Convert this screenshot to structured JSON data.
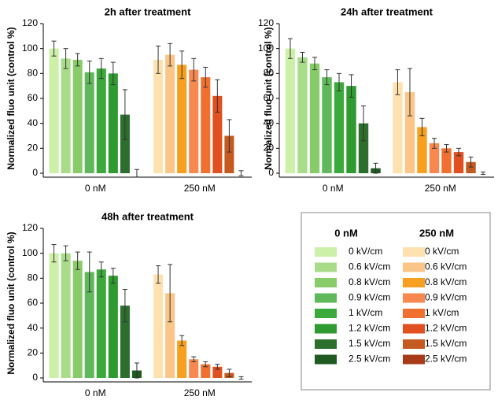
{
  "chart_data": [
    {
      "type": "bar",
      "title": "2h after treatment",
      "y_label": "Normalized fluo unit (control %)",
      "categories": [
        "0 nM",
        "250 nM"
      ],
      "values": [
        [
          100,
          92,
          91,
          81,
          84,
          80,
          47,
          0
        ],
        [
          91,
          95,
          87,
          83,
          77,
          62,
          30,
          0
        ]
      ],
      "errors": [
        [
          6,
          8,
          5,
          9,
          8,
          9,
          20,
          3
        ],
        [
          11,
          9,
          11,
          9,
          8,
          13,
          13,
          2
        ]
      ],
      "ylim": [
        0,
        120
      ],
      "yticks": [
        0,
        20,
        40,
        60,
        80,
        100,
        120
      ]
    },
    {
      "type": "bar",
      "title": "24h after treatment",
      "y_label": "Normalized fluo unit (control %)",
      "categories": [
        "0 nM",
        "250 nM"
      ],
      "values": [
        [
          100,
          93,
          88,
          77,
          73,
          70,
          40,
          4
        ],
        [
          73,
          65,
          37,
          24,
          20,
          17,
          9,
          0
        ]
      ],
      "errors": [
        [
          8,
          4,
          5,
          6,
          7,
          9,
          14,
          4
        ],
        [
          10,
          19,
          7,
          4,
          3,
          3,
          4,
          1
        ]
      ],
      "ylim": [
        0,
        120
      ],
      "yticks": [
        0,
        20,
        40,
        60,
        80,
        100,
        120
      ]
    },
    {
      "type": "bar",
      "title": "48h after treatment",
      "y_label": "Normalized fluo unit (control %)",
      "categories": [
        "0 nM",
        "250 nM"
      ],
      "values": [
        [
          100,
          100,
          94,
          85,
          87,
          82,
          58,
          6
        ],
        [
          83,
          68,
          30,
          15,
          11,
          9,
          4,
          0
        ]
      ],
      "errors": [
        [
          7,
          6,
          7,
          16,
          6,
          6,
          13,
          6
        ],
        [
          7,
          23,
          4,
          2,
          2,
          2,
          3,
          1
        ]
      ],
      "ylim": [
        0,
        120
      ],
      "yticks": [
        0,
        20,
        40,
        60,
        80,
        100,
        120
      ]
    }
  ],
  "legend": {
    "groups": [
      {
        "title": "0 nM",
        "items": [
          {
            "label": "0 kV/cm",
            "color": "#ccf0a8"
          },
          {
            "label": "0.6 kV/cm",
            "color": "#a8dc88"
          },
          {
            "label": "0.8 kV/cm",
            "color": "#88cc6a"
          },
          {
            "label": "0.9 kV/cm",
            "color": "#5fb85a"
          },
          {
            "label": "1 kV/cm",
            "color": "#3ca93c"
          },
          {
            "label": "1.2 kV/cm",
            "color": "#2f9a2f"
          },
          {
            "label": "1.5 kV/cm",
            "color": "#2c6e2c"
          },
          {
            "label": "2.5 kV/cm",
            "color": "#1f5a22"
          }
        ]
      },
      {
        "title": "250 nM",
        "items": [
          {
            "label": "0 kV/cm",
            "color": "#fde2b0"
          },
          {
            "label": "0.6 kV/cm",
            "color": "#fcc588"
          },
          {
            "label": "0.8 kV/cm",
            "color": "#f7a020"
          },
          {
            "label": "0.9 kV/cm",
            "color": "#f78850"
          },
          {
            "label": "1 kV/cm",
            "color": "#f07030"
          },
          {
            "label": "1.2 kV/cm",
            "color": "#e05020"
          },
          {
            "label": "1.5 kV/cm",
            "color": "#c55a20"
          },
          {
            "label": "2.5 kV/cm",
            "color": "#a83a18"
          }
        ]
      }
    ]
  }
}
